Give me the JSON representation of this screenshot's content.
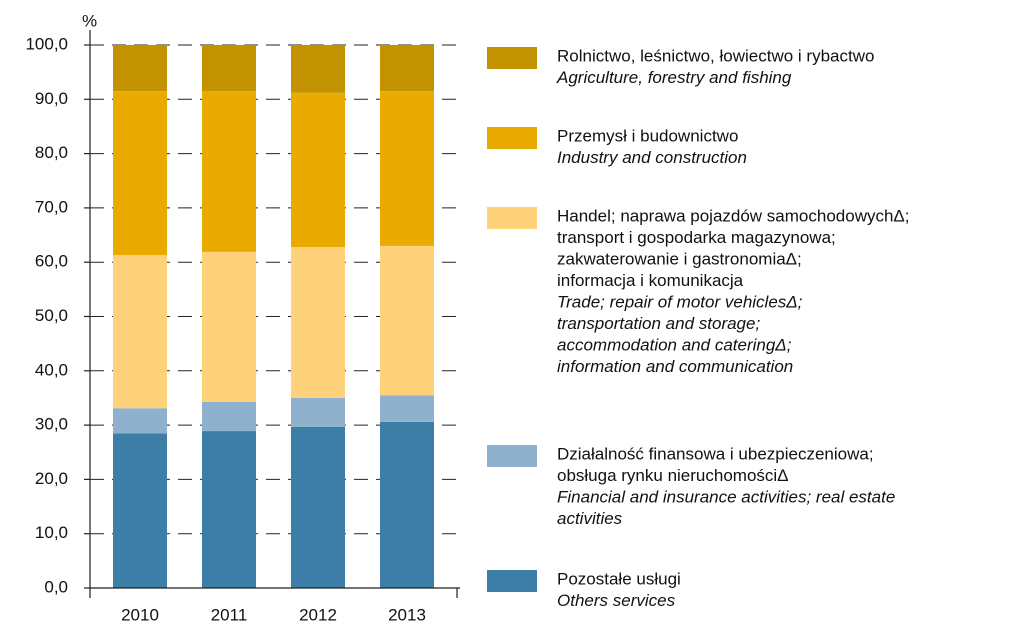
{
  "chart_data": {
    "type": "stacked_bar",
    "y_unit": "%",
    "categories": [
      "2010",
      "2011",
      "2012",
      "2013"
    ],
    "ylim": [
      0,
      100
    ],
    "yticks": [
      {
        "value": 0,
        "label": "0,0"
      },
      {
        "value": 10,
        "label": "10,0"
      },
      {
        "value": 20,
        "label": "20,0"
      },
      {
        "value": 30,
        "label": "30,0"
      },
      {
        "value": 40,
        "label": "40,0"
      },
      {
        "value": 50,
        "label": "50,0"
      },
      {
        "value": 60,
        "label": "60,0"
      },
      {
        "value": 70,
        "label": "70,0"
      },
      {
        "value": 80,
        "label": "80,0"
      },
      {
        "value": 90,
        "label": "90,0"
      },
      {
        "value": 100,
        "label": "100,0"
      }
    ],
    "grid": true,
    "legend": "right",
    "series": [
      {
        "name": [
          "Pozostałe usługi"
        ],
        "name_en": [
          "Others services"
        ],
        "color": "#3d7ea6",
        "values": [
          28.5,
          28.9,
          29.7,
          30.6
        ]
      },
      {
        "name": [
          "Działalność finansowa i ubezpieczeniowa;",
          "obsługa rynku nieruchomościΔ"
        ],
        "name_en": [
          "Financial and insurance activities; real estate",
          "activities"
        ],
        "color": "#8fb1cd",
        "values": [
          4.6,
          5.4,
          5.3,
          4.9
        ]
      },
      {
        "name": [
          "Handel; naprawa pojazdów samochodowychΔ;",
          "transport i gospodarka magazynowa;",
          "zakwaterowanie i gastronomiaΔ;",
          "informacja i komunikacja"
        ],
        "name_en": [
          "Trade; repair of motor vehiclesΔ;",
          "transportation and storage;",
          "accommodation and cateringΔ;",
          "information and communication"
        ],
        "color": "#fdd27b",
        "values": [
          28.2,
          27.6,
          27.8,
          27.5
        ]
      },
      {
        "name": [
          "Przemysł i budownictwo"
        ],
        "name_en": [
          "Industry and construction"
        ],
        "color": "#e9ab00",
        "values": [
          30.2,
          29.6,
          28.4,
          28.5
        ]
      },
      {
        "name": [
          "Rolnictwo, leśnictwo, łowiectwo i rybactwo"
        ],
        "name_en": [
          "Agriculture, forestry and fishing"
        ],
        "color": "#c39200",
        "values": [
          8.5,
          8.5,
          8.8,
          8.5
        ]
      }
    ]
  }
}
